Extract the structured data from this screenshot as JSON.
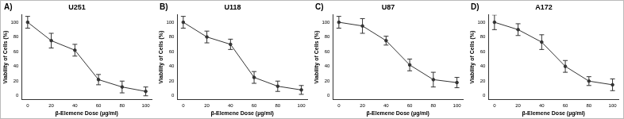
{
  "chart_data": [
    {
      "type": "line",
      "panel_label": "A)",
      "title": "U251",
      "x_label": "β-Elemene Dose (µg/ml)",
      "y_label": "Viability of Cells (%)",
      "x": [
        0,
        20,
        40,
        60,
        80,
        100
      ],
      "values": [
        100,
        75,
        62,
        22,
        12,
        6
      ],
      "errors": [
        8,
        10,
        8,
        7,
        8,
        6
      ],
      "color": "#333333",
      "marker": "circle",
      "xlim": [
        -5,
        105
      ],
      "xticks": [
        0,
        20,
        40,
        60,
        80,
        100
      ],
      "ylim": [
        -5,
        110
      ],
      "yticks": [
        0,
        20,
        40,
        60,
        80,
        100
      ],
      "grid": false
    },
    {
      "type": "line",
      "panel_label": "B)",
      "title": "U118",
      "x_label": "β-Elemene Dose (µg/ml)",
      "y_label": "Viability of Cells (%)",
      "x": [
        0,
        20,
        40,
        60,
        80,
        100
      ],
      "values": [
        100,
        80,
        70,
        25,
        13,
        8
      ],
      "errors": [
        8,
        8,
        7,
        8,
        7,
        6
      ],
      "color": "#333333",
      "marker": "circle",
      "xlim": [
        -5,
        105
      ],
      "xticks": [
        0,
        20,
        40,
        60,
        80,
        100
      ],
      "ylim": [
        -5,
        110
      ],
      "yticks": [
        0,
        20,
        40,
        60,
        80,
        100
      ],
      "grid": false
    },
    {
      "type": "line",
      "panel_label": "C)",
      "title": "U87",
      "x_label": "β-Elemene Dose (µg/ml)",
      "y_label": "Viability of Cells (%)",
      "x": [
        0,
        20,
        40,
        60,
        80,
        100
      ],
      "values": [
        100,
        95,
        75,
        42,
        22,
        18
      ],
      "errors": [
        8,
        10,
        6,
        8,
        10,
        7
      ],
      "color": "#333333",
      "marker": "circle",
      "xlim": [
        -5,
        105
      ],
      "xticks": [
        0,
        20,
        40,
        60,
        80,
        100
      ],
      "ylim": [
        -5,
        110
      ],
      "yticks": [
        0,
        20,
        40,
        60,
        80,
        100
      ],
      "grid": false
    },
    {
      "type": "line",
      "panel_label": "D)",
      "title": "A172",
      "x_label": "β-Elemene Dose (µg/ml)",
      "y_label": "Viability of Cells (%)",
      "x": [
        0,
        20,
        40,
        60,
        80,
        100
      ],
      "values": [
        100,
        90,
        73,
        40,
        20,
        15
      ],
      "errors": [
        10,
        8,
        10,
        8,
        6,
        8
      ],
      "color": "#333333",
      "marker": "circle",
      "xlim": [
        -5,
        105
      ],
      "xticks": [
        0,
        20,
        40,
        60,
        80,
        100
      ],
      "ylim": [
        -5,
        110
      ],
      "yticks": [
        0,
        20,
        40,
        60,
        80,
        100
      ],
      "grid": false
    }
  ]
}
